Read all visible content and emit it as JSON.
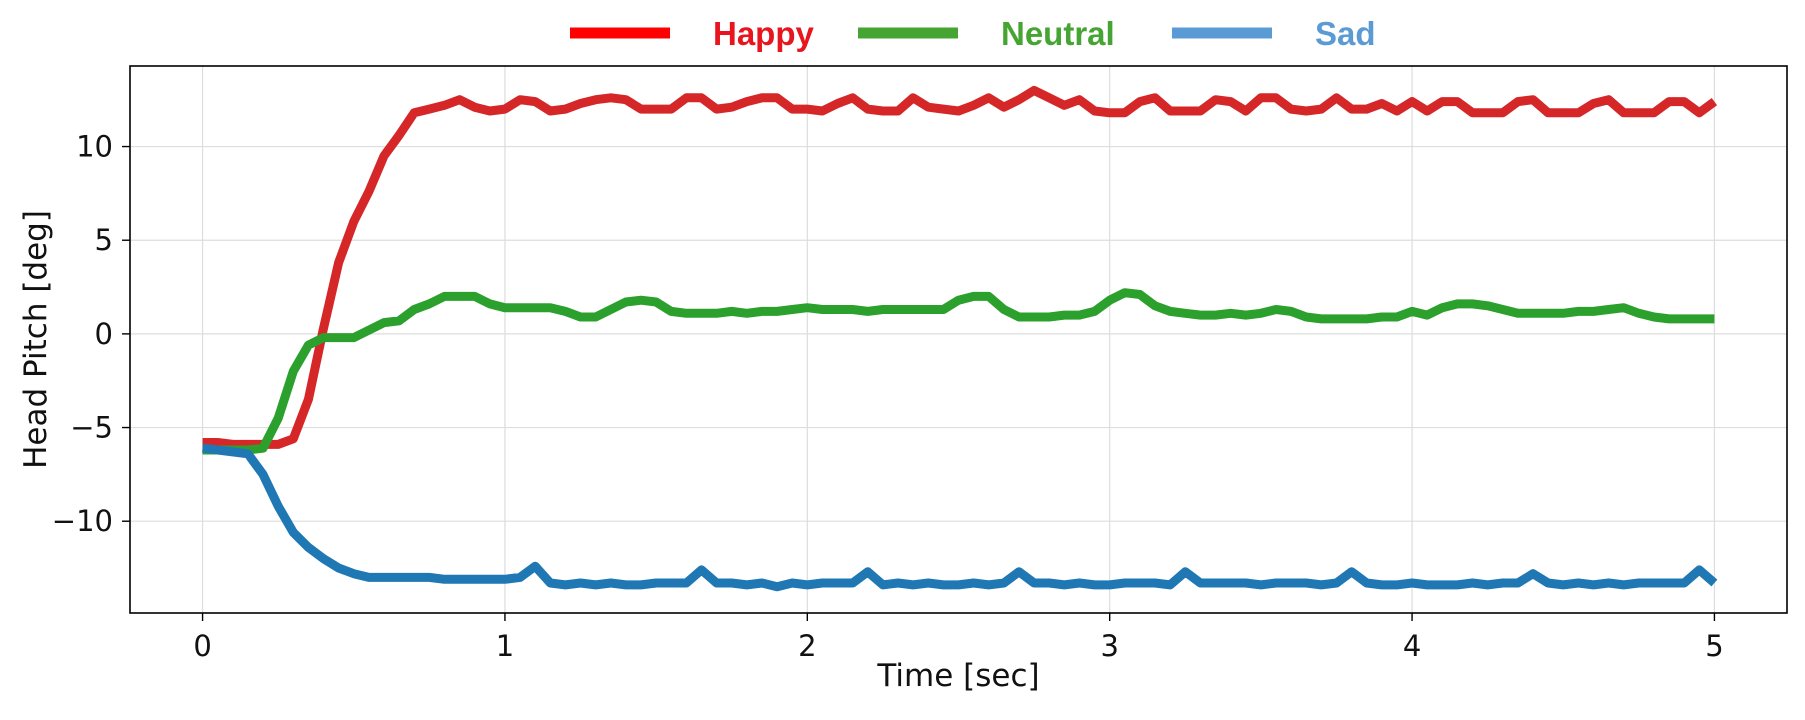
{
  "chart_data": {
    "type": "line",
    "xlabel": "Time [sec]",
    "ylabel": "Head Pitch [deg]",
    "xlim": [
      -0.24,
      5.24
    ],
    "ylim": [
      -14.9,
      14.3
    ],
    "x_ticks": [
      0,
      1,
      2,
      3,
      4,
      5
    ],
    "x_tick_labels": [
      "0",
      "1",
      "2",
      "3",
      "4",
      "5"
    ],
    "y_ticks": [
      -10,
      -5,
      0,
      5,
      10
    ],
    "y_tick_labels": [
      "−10",
      "−5",
      "0",
      "5",
      "10"
    ],
    "grid": true,
    "legend_placement": "top-center, outside plot",
    "series": [
      {
        "name": "Happy",
        "line_color": "#d62728",
        "legend_line_color": "#ff0000",
        "legend_text_color": "#e8141e",
        "x": [
          0,
          0.05,
          0.1,
          0.15,
          0.2,
          0.25,
          0.3,
          0.35,
          0.4,
          0.45,
          0.5,
          0.55,
          0.6,
          0.65,
          0.7,
          0.75,
          0.8,
          0.85,
          0.9,
          0.95,
          1.0,
          1.05,
          1.1,
          1.15,
          1.2,
          1.25,
          1.3,
          1.35,
          1.4,
          1.45,
          1.5,
          1.55,
          1.6,
          1.65,
          1.7,
          1.75,
          1.8,
          1.85,
          1.9,
          1.95,
          2.0,
          2.05,
          2.1,
          2.15,
          2.2,
          2.25,
          2.3,
          2.35,
          2.4,
          2.45,
          2.5,
          2.55,
          2.6,
          2.65,
          2.7,
          2.75,
          2.8,
          2.85,
          2.9,
          2.95,
          3.0,
          3.05,
          3.1,
          3.15,
          3.2,
          3.25,
          3.3,
          3.35,
          3.4,
          3.45,
          3.5,
          3.55,
          3.6,
          3.65,
          3.7,
          3.75,
          3.8,
          3.85,
          3.9,
          3.95,
          4.0,
          4.05,
          4.1,
          4.15,
          4.2,
          4.25,
          4.3,
          4.35,
          4.4,
          4.45,
          4.5,
          4.55,
          4.6,
          4.65,
          4.7,
          4.75,
          4.8,
          4.85,
          4.9,
          4.95,
          5.0
        ],
        "y": [
          -5.8,
          -5.8,
          -5.9,
          -5.9,
          -5.9,
          -5.9,
          -5.6,
          -3.5,
          0.3,
          3.8,
          6.0,
          7.6,
          9.5,
          10.6,
          11.8,
          12.0,
          12.2,
          12.5,
          12.1,
          11.9,
          12.0,
          12.5,
          12.4,
          11.9,
          12.0,
          12.3,
          12.5,
          12.6,
          12.5,
          12.0,
          12.0,
          12.0,
          12.6,
          12.6,
          12.0,
          12.1,
          12.4,
          12.6,
          12.6,
          12.0,
          12.0,
          11.9,
          12.3,
          12.6,
          12.0,
          11.9,
          11.9,
          12.6,
          12.1,
          12.0,
          11.9,
          12.2,
          12.6,
          12.1,
          12.5,
          13.0,
          12.6,
          12.2,
          12.5,
          11.9,
          11.8,
          11.8,
          12.4,
          12.6,
          11.9,
          11.9,
          11.9,
          12.5,
          12.4,
          11.9,
          12.6,
          12.6,
          12.0,
          11.9,
          12.0,
          12.6,
          12.0,
          12.0,
          12.3,
          11.9,
          12.4,
          11.9,
          12.4,
          12.4,
          11.8,
          11.8,
          11.8,
          12.4,
          12.5,
          11.8,
          11.8,
          11.8,
          12.3,
          12.5,
          11.8,
          11.8,
          11.8,
          12.4,
          12.4,
          11.8,
          12.4
        ]
      },
      {
        "name": "Neutral",
        "line_color": "#2ca02c",
        "legend_line_color": "#46a532",
        "legend_text_color": "#46a532",
        "x": [
          0,
          0.05,
          0.1,
          0.15,
          0.2,
          0.25,
          0.3,
          0.35,
          0.4,
          0.45,
          0.5,
          0.55,
          0.6,
          0.65,
          0.7,
          0.75,
          0.8,
          0.85,
          0.9,
          0.95,
          1.0,
          1.05,
          1.1,
          1.15,
          1.2,
          1.25,
          1.3,
          1.35,
          1.4,
          1.45,
          1.5,
          1.55,
          1.6,
          1.65,
          1.7,
          1.75,
          1.8,
          1.85,
          1.9,
          1.95,
          2.0,
          2.05,
          2.1,
          2.15,
          2.2,
          2.25,
          2.3,
          2.35,
          2.4,
          2.45,
          2.5,
          2.55,
          2.6,
          2.65,
          2.7,
          2.75,
          2.8,
          2.85,
          2.9,
          2.95,
          3.0,
          3.05,
          3.1,
          3.15,
          3.2,
          3.25,
          3.3,
          3.35,
          3.4,
          3.45,
          3.5,
          3.55,
          3.6,
          3.65,
          3.7,
          3.75,
          3.8,
          3.85,
          3.9,
          3.95,
          4.0,
          4.05,
          4.1,
          4.15,
          4.2,
          4.25,
          4.3,
          4.35,
          4.4,
          4.45,
          4.5,
          4.55,
          4.6,
          4.65,
          4.7,
          4.75,
          4.8,
          4.85,
          4.9,
          4.95,
          5.0
        ],
        "y": [
          -6.2,
          -6.2,
          -6.2,
          -6.2,
          -6.1,
          -4.5,
          -2.0,
          -0.6,
          -0.2,
          -0.2,
          -0.2,
          0.2,
          0.6,
          0.7,
          1.3,
          1.6,
          2.0,
          2.0,
          2.0,
          1.6,
          1.4,
          1.4,
          1.4,
          1.4,
          1.2,
          0.9,
          0.9,
          1.3,
          1.7,
          1.8,
          1.7,
          1.2,
          1.1,
          1.1,
          1.1,
          1.2,
          1.1,
          1.2,
          1.2,
          1.3,
          1.4,
          1.3,
          1.3,
          1.3,
          1.2,
          1.3,
          1.3,
          1.3,
          1.3,
          1.3,
          1.8,
          2.0,
          2.0,
          1.3,
          0.9,
          0.9,
          0.9,
          1.0,
          1.0,
          1.2,
          1.8,
          2.2,
          2.1,
          1.5,
          1.2,
          1.1,
          1.0,
          1.0,
          1.1,
          1.0,
          1.1,
          1.3,
          1.2,
          0.9,
          0.8,
          0.8,
          0.8,
          0.8,
          0.9,
          0.9,
          1.2,
          1.0,
          1.4,
          1.6,
          1.6,
          1.5,
          1.3,
          1.1,
          1.1,
          1.1,
          1.1,
          1.2,
          1.2,
          1.3,
          1.4,
          1.1,
          0.9,
          0.8,
          0.8,
          0.8,
          0.8
        ]
      },
      {
        "name": "Sad",
        "line_color": "#1f77b4",
        "legend_line_color": "#5b9bd5",
        "legend_text_color": "#5b9bd5",
        "x": [
          0,
          0.05,
          0.1,
          0.15,
          0.2,
          0.25,
          0.3,
          0.35,
          0.4,
          0.45,
          0.5,
          0.55,
          0.6,
          0.65,
          0.7,
          0.75,
          0.8,
          0.85,
          0.9,
          0.95,
          1.0,
          1.05,
          1.1,
          1.15,
          1.2,
          1.25,
          1.3,
          1.35,
          1.4,
          1.45,
          1.5,
          1.55,
          1.6,
          1.65,
          1.7,
          1.75,
          1.8,
          1.85,
          1.9,
          1.95,
          2.0,
          2.05,
          2.1,
          2.15,
          2.2,
          2.25,
          2.3,
          2.35,
          2.4,
          2.45,
          2.5,
          2.55,
          2.6,
          2.65,
          2.7,
          2.75,
          2.8,
          2.85,
          2.9,
          2.95,
          3.0,
          3.05,
          3.1,
          3.15,
          3.2,
          3.25,
          3.3,
          3.35,
          3.4,
          3.45,
          3.5,
          3.55,
          3.6,
          3.65,
          3.7,
          3.75,
          3.8,
          3.85,
          3.9,
          3.95,
          4.0,
          4.05,
          4.1,
          4.15,
          4.2,
          4.25,
          4.3,
          4.35,
          4.4,
          4.45,
          4.5,
          4.55,
          4.6,
          4.65,
          4.7,
          4.75,
          4.8,
          4.85,
          4.9,
          4.95,
          5.0
        ],
        "y": [
          -6.1,
          -6.2,
          -6.3,
          -6.4,
          -7.5,
          -9.2,
          -10.6,
          -11.4,
          -12.0,
          -12.5,
          -12.8,
          -13.0,
          -13.0,
          -13.0,
          -13.0,
          -13.0,
          -13.1,
          -13.1,
          -13.1,
          -13.1,
          -13.1,
          -13.0,
          -12.4,
          -13.3,
          -13.4,
          -13.3,
          -13.4,
          -13.3,
          -13.4,
          -13.4,
          -13.3,
          -13.3,
          -13.3,
          -12.6,
          -13.3,
          -13.3,
          -13.4,
          -13.3,
          -13.5,
          -13.3,
          -13.4,
          -13.3,
          -13.3,
          -13.3,
          -12.7,
          -13.4,
          -13.3,
          -13.4,
          -13.3,
          -13.4,
          -13.4,
          -13.3,
          -13.4,
          -13.3,
          -12.7,
          -13.3,
          -13.3,
          -13.4,
          -13.3,
          -13.4,
          -13.4,
          -13.3,
          -13.3,
          -13.3,
          -13.4,
          -12.7,
          -13.3,
          -13.3,
          -13.3,
          -13.3,
          -13.4,
          -13.3,
          -13.3,
          -13.3,
          -13.4,
          -13.3,
          -12.7,
          -13.3,
          -13.4,
          -13.4,
          -13.3,
          -13.4,
          -13.4,
          -13.4,
          -13.3,
          -13.4,
          -13.3,
          -13.3,
          -12.8,
          -13.3,
          -13.4,
          -13.3,
          -13.4,
          -13.3,
          -13.4,
          -13.3,
          -13.3,
          -13.3,
          -13.3,
          -12.6,
          -13.3
        ]
      }
    ]
  }
}
